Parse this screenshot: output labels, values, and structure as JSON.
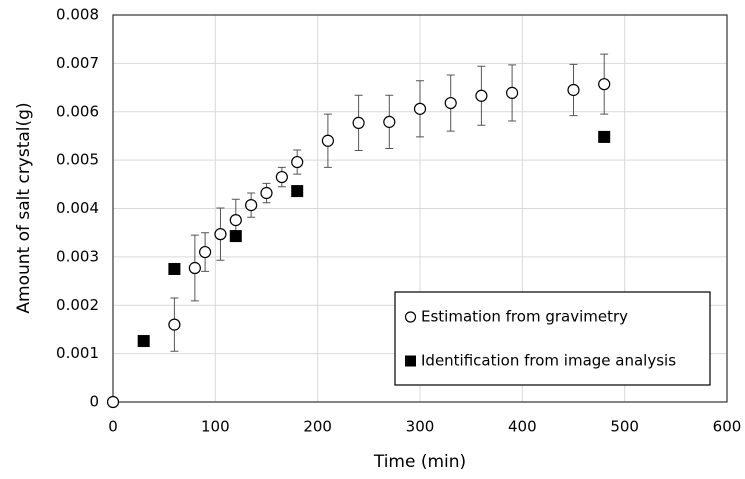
{
  "chart_data": {
    "type": "scatter",
    "x_label": "Time (min)",
    "y_label": "Amount of salt crystal(g)",
    "xlim": [
      0,
      600
    ],
    "xticks": [
      0,
      100,
      200,
      300,
      400,
      500,
      600
    ],
    "ylim": [
      0,
      0.008
    ],
    "yticks": [
      0,
      0.001,
      0.002,
      0.003,
      0.004,
      0.005,
      0.006,
      0.007,
      0.008
    ],
    "grid": true,
    "legend": "lower right",
    "series": [
      {
        "name": "Estimation from gravimetry",
        "marker": "circle",
        "color": "#000000",
        "x": [
          0,
          60,
          80,
          90,
          105,
          120,
          135,
          150,
          165,
          180,
          210,
          240,
          270,
          300,
          330,
          360,
          390,
          450,
          480
        ],
        "values": [
          0,
          0.0016,
          0.00277,
          0.0031,
          0.00347,
          0.00376,
          0.00407,
          0.00432,
          0.00465,
          0.00496,
          0.0054,
          0.00577,
          0.00579,
          0.00606,
          0.00618,
          0.00633,
          0.00639,
          0.00645,
          0.00657
        ],
        "errors": [
          null,
          0.00055,
          0.00068,
          0.0004,
          0.00054,
          0.00043,
          0.00025,
          0.0002,
          0.0002,
          0.00025,
          0.00055,
          0.00057,
          0.00055,
          0.00058,
          0.00058,
          0.00061,
          0.00058,
          0.00053,
          0.00062
        ]
      },
      {
        "name": "Identification from image analysis",
        "marker": "square",
        "color": "#000000",
        "x": [
          30,
          60,
          120,
          180,
          480
        ],
        "values": [
          0.00126,
          0.00275,
          0.00343,
          0.00436,
          0.00548
        ]
      }
    ]
  }
}
